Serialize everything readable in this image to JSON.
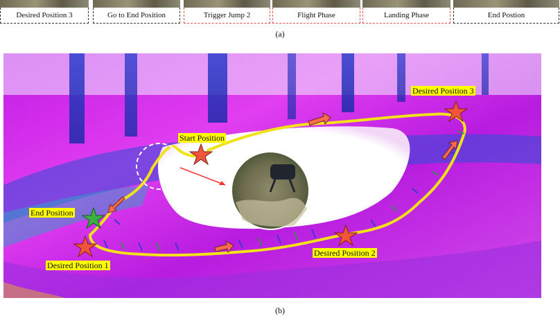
{
  "strip": {
    "panels": [
      {
        "label": "Desired Position 3"
      },
      {
        "label": "Go to End Position"
      },
      {
        "label": "Trigger Jump 2"
      },
      {
        "label": "Flight Phase"
      },
      {
        "label": "Landing Phase"
      },
      {
        "label": "End Postion"
      }
    ],
    "caption": "(a)"
  },
  "figure": {
    "labels": {
      "start": "Start Position",
      "desired1": "Desired Position 1",
      "desired2": "Desired Position 2",
      "desired3": "Desired Position 3",
      "end": "End Position"
    },
    "caption": "(b)",
    "colors": {
      "path": "#f2e21a",
      "star_red": "#f0553a",
      "star_green": "#3cb043",
      "arrow": "#ff6a4d",
      "cloud_magenta": "#d41ee8",
      "cloud_blue": "#3a48d8",
      "label_bg": "#ffff00"
    }
  }
}
